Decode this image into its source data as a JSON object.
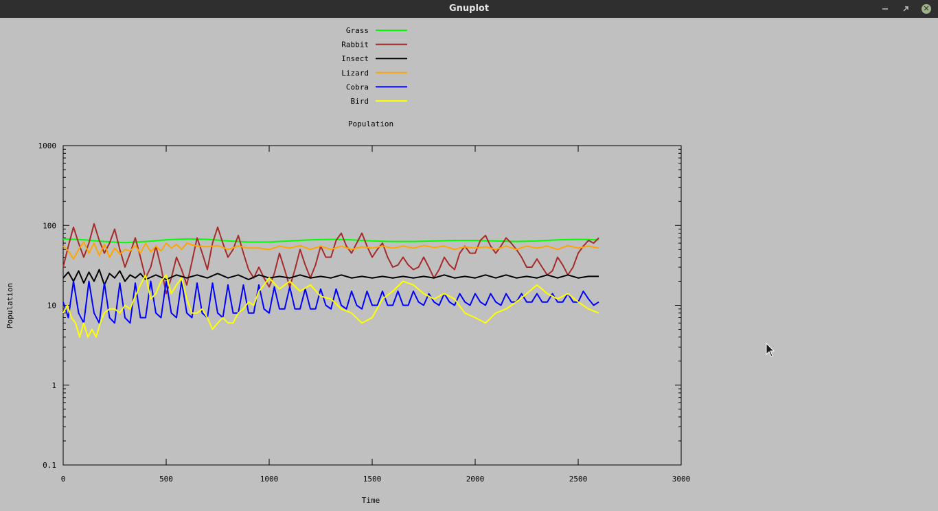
{
  "window": {
    "title": "Gnuplot"
  },
  "colors": {
    "background": "#c0c0c0",
    "titlebar": "#2f2f2f",
    "Grass": "#00ff00",
    "Rabbit": "#a52a2a",
    "Insect": "#000000",
    "Lizard": "#ffa500",
    "Cobra": "#0000ff",
    "Bird": "#ffff00"
  },
  "chart_data": {
    "type": "line",
    "title": "Population",
    "xlabel": "Time",
    "ylabel": "Population",
    "xlim": [
      0,
      3000
    ],
    "ylim": [
      0.1,
      1000
    ],
    "yscale": "log",
    "xticks": [
      "0",
      "500",
      "1000",
      "1500",
      "2000",
      "2500",
      "3000"
    ],
    "yticks": [
      "0.1",
      "1",
      "10",
      "100",
      "1000"
    ],
    "legend": "top-center",
    "grid": false,
    "series": [
      {
        "name": "Grass",
        "color": "#00ff00",
        "x": [
          0,
          100,
          200,
          300,
          400,
          500,
          600,
          700,
          800,
          900,
          1000,
          1100,
          1200,
          1300,
          1400,
          1500,
          1600,
          1700,
          1800,
          1900,
          2000,
          2100,
          2200,
          2300,
          2400,
          2500,
          2600
        ],
        "y": [
          68,
          66,
          63,
          61,
          63,
          66,
          68,
          67,
          64,
          62,
          62,
          64,
          66,
          67,
          66,
          64,
          63,
          63,
          64,
          65,
          65,
          64,
          63,
          64,
          66,
          67,
          66
        ]
      },
      {
        "name": "Rabbit",
        "color": "#a52a2a",
        "x": [
          0,
          25,
          50,
          75,
          100,
          125,
          150,
          175,
          200,
          225,
          250,
          275,
          300,
          325,
          350,
          375,
          400,
          425,
          450,
          475,
          500,
          525,
          550,
          575,
          600,
          625,
          650,
          675,
          700,
          725,
          750,
          775,
          800,
          825,
          850,
          875,
          900,
          925,
          950,
          975,
          1000,
          1025,
          1050,
          1075,
          1100,
          1125,
          1150,
          1175,
          1200,
          1225,
          1250,
          1275,
          1300,
          1325,
          1350,
          1375,
          1400,
          1425,
          1450,
          1475,
          1500,
          1525,
          1550,
          1575,
          1600,
          1625,
          1650,
          1675,
          1700,
          1725,
          1750,
          1775,
          1800,
          1825,
          1850,
          1875,
          1900,
          1925,
          1950,
          1975,
          2000,
          2025,
          2050,
          2075,
          2100,
          2125,
          2150,
          2175,
          2200,
          2225,
          2250,
          2275,
          2300,
          2325,
          2350,
          2375,
          2400,
          2425,
          2450,
          2475,
          2500,
          2525,
          2550,
          2575,
          2600
        ],
        "y": [
          30,
          55,
          95,
          60,
          40,
          60,
          105,
          65,
          45,
          60,
          90,
          50,
          30,
          45,
          70,
          40,
          22,
          30,
          55,
          30,
          14,
          22,
          40,
          28,
          18,
          35,
          70,
          45,
          28,
          60,
          95,
          60,
          40,
          50,
          75,
          45,
          28,
          22,
          30,
          22,
          17,
          25,
          45,
          28,
          17,
          28,
          50,
          32,
          22,
          32,
          55,
          40,
          40,
          65,
          80,
          55,
          45,
          60,
          80,
          55,
          40,
          50,
          60,
          40,
          30,
          32,
          40,
          32,
          28,
          30,
          40,
          30,
          22,
          28,
          40,
          32,
          28,
          45,
          55,
          45,
          45,
          65,
          75,
          55,
          45,
          55,
          70,
          60,
          50,
          40,
          30,
          30,
          38,
          30,
          24,
          27,
          40,
          32,
          24,
          30,
          45,
          55,
          65,
          60,
          70
        ]
      },
      {
        "name": "Insect",
        "color": "#000000",
        "x": [
          0,
          25,
          50,
          75,
          100,
          125,
          150,
          175,
          200,
          225,
          250,
          275,
          300,
          325,
          350,
          375,
          400,
          450,
          500,
          550,
          600,
          650,
          700,
          750,
          800,
          850,
          900,
          950,
          1000,
          1050,
          1100,
          1150,
          1200,
          1250,
          1300,
          1350,
          1400,
          1450,
          1500,
          1550,
          1600,
          1650,
          1700,
          1750,
          1800,
          1850,
          1900,
          1950,
          2000,
          2050,
          2100,
          2150,
          2200,
          2250,
          2300,
          2350,
          2400,
          2450,
          2500,
          2550,
          2600
        ],
        "y": [
          22,
          26,
          20,
          27,
          19,
          26,
          20,
          28,
          18,
          25,
          22,
          27,
          20,
          24,
          22,
          25,
          21,
          24,
          21,
          24,
          22,
          24,
          22,
          25,
          22,
          24,
          21,
          24,
          22,
          23,
          22,
          24,
          22,
          23,
          22,
          24,
          22,
          23,
          22,
          23,
          22,
          23,
          22,
          23,
          22,
          24,
          22,
          23,
          22,
          24,
          22,
          24,
          22,
          23,
          22,
          24,
          22,
          24,
          22,
          23,
          23
        ]
      },
      {
        "name": "Lizard",
        "color": "#ffa500",
        "x": [
          0,
          25,
          50,
          75,
          100,
          125,
          150,
          175,
          200,
          225,
          250,
          275,
          300,
          325,
          350,
          375,
          400,
          425,
          450,
          475,
          500,
          525,
          550,
          575,
          600,
          650,
          700,
          750,
          800,
          850,
          900,
          950,
          1000,
          1050,
          1100,
          1150,
          1200,
          1250,
          1300,
          1350,
          1400,
          1450,
          1500,
          1550,
          1600,
          1650,
          1700,
          1750,
          1800,
          1850,
          1900,
          1950,
          2000,
          2050,
          2100,
          2150,
          2200,
          2250,
          2300,
          2350,
          2400,
          2450,
          2500,
          2550,
          2600
        ],
        "y": [
          55,
          48,
          38,
          50,
          62,
          45,
          60,
          42,
          58,
          40,
          52,
          44,
          50,
          48,
          56,
          45,
          60,
          47,
          55,
          48,
          60,
          52,
          58,
          50,
          60,
          55,
          54,
          56,
          50,
          55,
          52,
          52,
          50,
          55,
          52,
          56,
          50,
          55,
          50,
          55,
          50,
          54,
          52,
          55,
          52,
          55,
          52,
          56,
          53,
          55,
          50,
          54,
          52,
          54,
          50,
          55,
          50,
          55,
          52,
          55,
          50,
          56,
          52,
          55,
          52
        ]
      },
      {
        "name": "Cobra",
        "color": "#0000ff",
        "x": [
          0,
          25,
          50,
          75,
          100,
          125,
          150,
          175,
          200,
          225,
          250,
          275,
          300,
          325,
          350,
          375,
          400,
          425,
          450,
          475,
          500,
          525,
          550,
          575,
          600,
          625,
          650,
          675,
          700,
          725,
          750,
          775,
          800,
          825,
          850,
          875,
          900,
          925,
          950,
          975,
          1000,
          1025,
          1050,
          1075,
          1100,
          1125,
          1150,
          1175,
          1200,
          1225,
          1250,
          1275,
          1300,
          1325,
          1350,
          1375,
          1400,
          1425,
          1450,
          1475,
          1500,
          1525,
          1550,
          1575,
          1600,
          1625,
          1650,
          1675,
          1700,
          1725,
          1750,
          1775,
          1800,
          1825,
          1850,
          1875,
          1900,
          1925,
          1950,
          1975,
          2000,
          2025,
          2050,
          2075,
          2100,
          2125,
          2150,
          2175,
          2200,
          2225,
          2250,
          2275,
          2300,
          2325,
          2350,
          2375,
          2400,
          2425,
          2450,
          2475,
          2500,
          2525,
          2550,
          2575,
          2600
        ],
        "y": [
          11,
          7,
          20,
          8,
          6,
          20,
          8,
          6,
          19,
          7,
          6,
          19,
          7,
          6,
          19,
          7,
          7,
          20,
          8,
          7,
          20,
          8,
          7,
          20,
          8,
          7,
          19,
          8,
          7,
          19,
          8,
          7,
          18,
          8,
          8,
          18,
          8,
          8,
          18,
          9,
          8,
          17,
          9,
          9,
          17,
          9,
          9,
          16,
          9,
          9,
          16,
          10,
          9,
          16,
          10,
          9,
          15,
          10,
          9,
          15,
          10,
          10,
          15,
          10,
          10,
          15,
          10,
          10,
          15,
          11,
          10,
          14,
          11,
          10,
          14,
          11,
          10,
          14,
          11,
          10,
          14,
          11,
          10,
          14,
          11,
          10,
          14,
          11,
          11,
          14,
          11,
          11,
          14,
          11,
          11,
          14,
          11,
          11,
          14,
          11,
          11,
          15,
          12,
          10,
          11
        ]
      },
      {
        "name": "Bird",
        "color": "#ffff00",
        "x": [
          0,
          20,
          40,
          60,
          80,
          100,
          120,
          140,
          160,
          180,
          200,
          225,
          250,
          275,
          300,
          325,
          350,
          375,
          400,
          425,
          450,
          475,
          500,
          525,
          550,
          575,
          600,
          625,
          650,
          675,
          700,
          725,
          750,
          775,
          800,
          825,
          850,
          875,
          900,
          925,
          950,
          975,
          1000,
          1050,
          1100,
          1150,
          1200,
          1250,
          1300,
          1350,
          1400,
          1450,
          1500,
          1550,
          1600,
          1650,
          1700,
          1750,
          1800,
          1850,
          1900,
          1950,
          2000,
          2050,
          2100,
          2150,
          2200,
          2250,
          2300,
          2350,
          2400,
          2450,
          2500,
          2550,
          2600
        ],
        "y": [
          8,
          10,
          7,
          6,
          4,
          6,
          4,
          5,
          4,
          6,
          8,
          9,
          9,
          8,
          10,
          9,
          13,
          18,
          24,
          12,
          14,
          20,
          24,
          14,
          18,
          22,
          12,
          8,
          8,
          9,
          7,
          5,
          6,
          7,
          6,
          6,
          8,
          9,
          11,
          10,
          15,
          18,
          22,
          16,
          20,
          15,
          18,
          13,
          12,
          9,
          8,
          6,
          7,
          12,
          15,
          20,
          18,
          14,
          12,
          14,
          12,
          8,
          7,
          6,
          8,
          9,
          11,
          14,
          18,
          14,
          12,
          14,
          11,
          9,
          8
        ]
      }
    ]
  }
}
